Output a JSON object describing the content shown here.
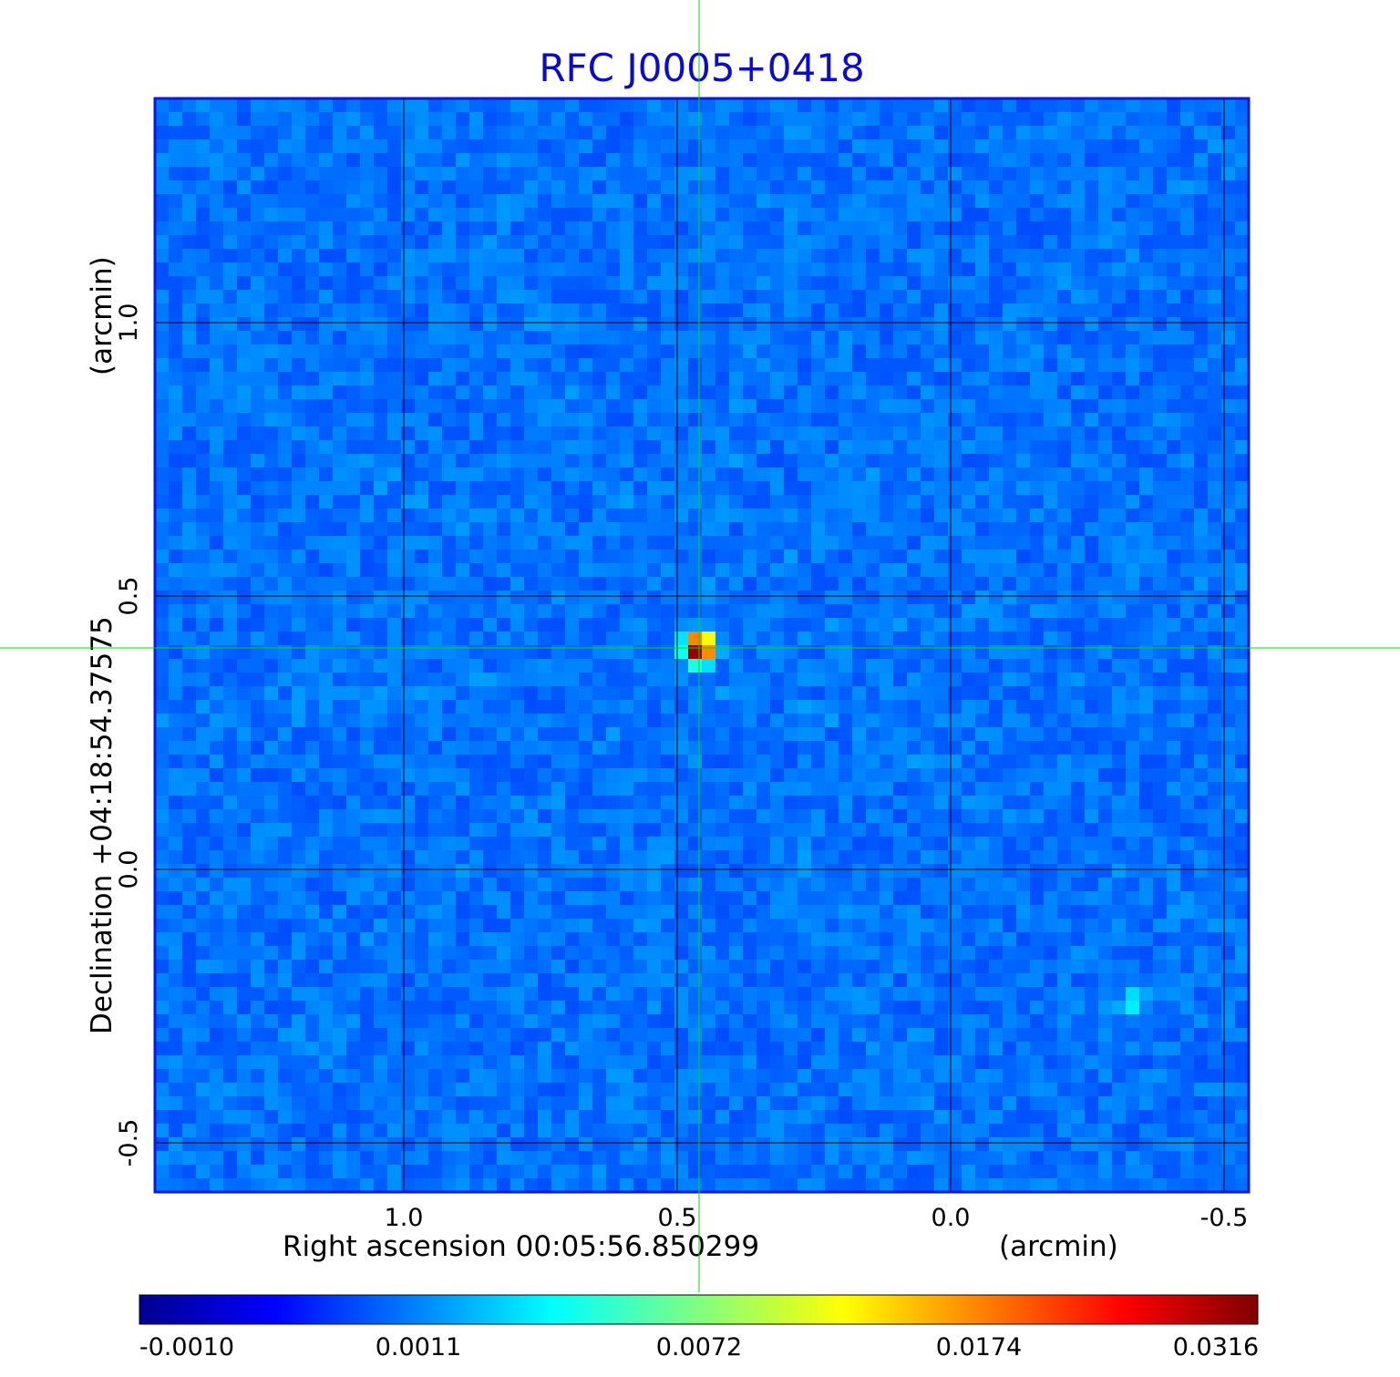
{
  "chart_data": {
    "type": "heatmap",
    "title": "RFC J0005+0418",
    "xlabel": "Right ascension  00:05:56.850299",
    "xunit": "(arcmin)",
    "ylabel": "Declination  +04:18:54.37575",
    "yunit": "(arcmin)",
    "xlim": [
      1.455,
      -0.545
    ],
    "ylim": [
      -0.59,
      1.41
    ],
    "x_ticks": [
      {
        "value": 1.0,
        "label": "1.0"
      },
      {
        "value": 0.5,
        "label": "0.5"
      },
      {
        "value": 0.0,
        "label": "0.0"
      },
      {
        "value": -0.5,
        "label": "-0.5"
      }
    ],
    "y_ticks": [
      {
        "value": 1.0,
        "label": "1.0"
      },
      {
        "value": 0.5,
        "label": "0.5"
      },
      {
        "value": 0.0,
        "label": "0.0"
      },
      {
        "value": -0.5,
        "label": "-0.5"
      }
    ],
    "grid": true,
    "colormap": "jet",
    "colorbar": {
      "position": "bottom",
      "ticks": [
        "-0.0010",
        "0.0011",
        "0.0072",
        "0.0174",
        "0.0316"
      ]
    },
    "source": {
      "x": 0.46,
      "y": 0.405,
      "peak": 0.0316
    },
    "secondary_source": {
      "x": -0.33,
      "y": -0.24,
      "peak": 0.0011
    },
    "crosshair": {
      "x": 0.46,
      "y": 0.405,
      "color": "#00dd00"
    },
    "colors": {
      "title": "#0a0ad2",
      "grid": "#000000"
    }
  }
}
